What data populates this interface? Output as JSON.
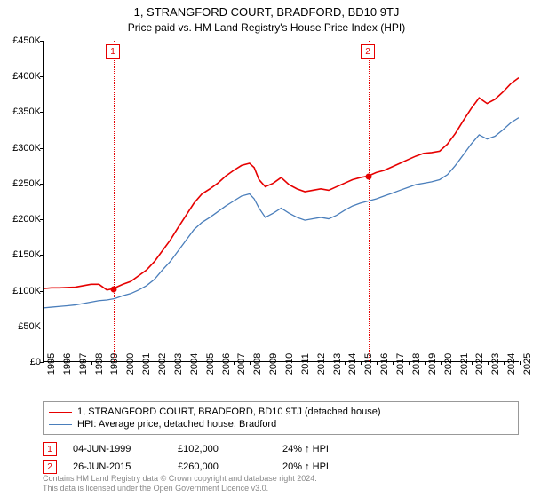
{
  "title": "1, STRANGFORD COURT, BRADFORD, BD10 9TJ",
  "subtitle": "Price paid vs. HM Land Registry's House Price Index (HPI)",
  "chart": {
    "type": "line",
    "background_color": "#ffffff",
    "axis_color": "#000000",
    "ylim": [
      0,
      450000
    ],
    "ytick_step": 50000,
    "ytick_prefix": "£",
    "ytick_suffix_thousands": "K",
    "yticks": [
      {
        "v": 0,
        "label": "£0"
      },
      {
        "v": 50000,
        "label": "£50K"
      },
      {
        "v": 100000,
        "label": "£100K"
      },
      {
        "v": 150000,
        "label": "£150K"
      },
      {
        "v": 200000,
        "label": "£200K"
      },
      {
        "v": 250000,
        "label": "£250K"
      },
      {
        "v": 300000,
        "label": "£300K"
      },
      {
        "v": 350000,
        "label": "£350K"
      },
      {
        "v": 400000,
        "label": "£400K"
      },
      {
        "v": 450000,
        "label": "£450K"
      }
    ],
    "xlim": [
      1995,
      2025
    ],
    "xticks": [
      1995,
      1996,
      1997,
      1998,
      1999,
      2000,
      2001,
      2002,
      2003,
      2004,
      2005,
      2006,
      2007,
      2008,
      2009,
      2010,
      2011,
      2012,
      2013,
      2014,
      2015,
      2016,
      2017,
      2018,
      2019,
      2020,
      2021,
      2022,
      2023,
      2024,
      2025
    ],
    "series": [
      {
        "name": "price_paid",
        "label": "1, STRANGFORD COURT, BRADFORD, BD10 9TJ (detached house)",
        "color": "#e60000",
        "line_width": 1.6,
        "points": [
          [
            1995.0,
            102000
          ],
          [
            1995.5,
            103000
          ],
          [
            1996.0,
            103000
          ],
          [
            1996.5,
            103500
          ],
          [
            1997.0,
            104000
          ],
          [
            1997.5,
            106000
          ],
          [
            1998.0,
            108000
          ],
          [
            1998.5,
            108000
          ],
          [
            1999.0,
            100000
          ],
          [
            1999.42,
            102000
          ],
          [
            1999.7,
            105000
          ],
          [
            2000.0,
            108000
          ],
          [
            2000.5,
            112000
          ],
          [
            2001.0,
            120000
          ],
          [
            2001.5,
            128000
          ],
          [
            2002.0,
            140000
          ],
          [
            2002.5,
            155000
          ],
          [
            2003.0,
            170000
          ],
          [
            2003.5,
            188000
          ],
          [
            2004.0,
            205000
          ],
          [
            2004.5,
            222000
          ],
          [
            2005.0,
            235000
          ],
          [
            2005.5,
            242000
          ],
          [
            2006.0,
            250000
          ],
          [
            2006.5,
            260000
          ],
          [
            2007.0,
            268000
          ],
          [
            2007.5,
            275000
          ],
          [
            2008.0,
            278000
          ],
          [
            2008.3,
            272000
          ],
          [
            2008.6,
            255000
          ],
          [
            2009.0,
            245000
          ],
          [
            2009.5,
            250000
          ],
          [
            2010.0,
            258000
          ],
          [
            2010.5,
            248000
          ],
          [
            2011.0,
            242000
          ],
          [
            2011.5,
            238000
          ],
          [
            2012.0,
            240000
          ],
          [
            2012.5,
            242000
          ],
          [
            2013.0,
            240000
          ],
          [
            2013.5,
            245000
          ],
          [
            2014.0,
            250000
          ],
          [
            2014.5,
            255000
          ],
          [
            2015.0,
            258000
          ],
          [
            2015.49,
            260000
          ],
          [
            2015.7,
            262000
          ],
          [
            2016.0,
            265000
          ],
          [
            2016.5,
            268000
          ],
          [
            2017.0,
            273000
          ],
          [
            2017.5,
            278000
          ],
          [
            2018.0,
            283000
          ],
          [
            2018.5,
            288000
          ],
          [
            2019.0,
            292000
          ],
          [
            2019.5,
            293000
          ],
          [
            2020.0,
            295000
          ],
          [
            2020.5,
            305000
          ],
          [
            2021.0,
            320000
          ],
          [
            2021.5,
            338000
          ],
          [
            2022.0,
            355000
          ],
          [
            2022.5,
            370000
          ],
          [
            2023.0,
            362000
          ],
          [
            2023.5,
            368000
          ],
          [
            2024.0,
            378000
          ],
          [
            2024.5,
            390000
          ],
          [
            2025.0,
            398000
          ]
        ]
      },
      {
        "name": "hpi",
        "label": "HPI: Average price, detached house, Bradford",
        "color": "#4a7ebb",
        "line_width": 1.3,
        "points": [
          [
            1995.0,
            75000
          ],
          [
            1995.5,
            76000
          ],
          [
            1996.0,
            77000
          ],
          [
            1996.5,
            78000
          ],
          [
            1997.0,
            79000
          ],
          [
            1997.5,
            81000
          ],
          [
            1998.0,
            83000
          ],
          [
            1998.5,
            85000
          ],
          [
            1999.0,
            86000
          ],
          [
            1999.5,
            88000
          ],
          [
            2000.0,
            92000
          ],
          [
            2000.5,
            95000
          ],
          [
            2001.0,
            100000
          ],
          [
            2001.5,
            106000
          ],
          [
            2002.0,
            115000
          ],
          [
            2002.5,
            128000
          ],
          [
            2003.0,
            140000
          ],
          [
            2003.5,
            155000
          ],
          [
            2004.0,
            170000
          ],
          [
            2004.5,
            185000
          ],
          [
            2005.0,
            195000
          ],
          [
            2005.5,
            202000
          ],
          [
            2006.0,
            210000
          ],
          [
            2006.5,
            218000
          ],
          [
            2007.0,
            225000
          ],
          [
            2007.5,
            232000
          ],
          [
            2008.0,
            235000
          ],
          [
            2008.3,
            228000
          ],
          [
            2008.6,
            215000
          ],
          [
            2009.0,
            202000
          ],
          [
            2009.5,
            208000
          ],
          [
            2010.0,
            215000
          ],
          [
            2010.5,
            208000
          ],
          [
            2011.0,
            202000
          ],
          [
            2011.5,
            198000
          ],
          [
            2012.0,
            200000
          ],
          [
            2012.5,
            202000
          ],
          [
            2013.0,
            200000
          ],
          [
            2013.5,
            205000
          ],
          [
            2014.0,
            212000
          ],
          [
            2014.5,
            218000
          ],
          [
            2015.0,
            222000
          ],
          [
            2015.5,
            225000
          ],
          [
            2016.0,
            228000
          ],
          [
            2016.5,
            232000
          ],
          [
            2017.0,
            236000
          ],
          [
            2017.5,
            240000
          ],
          [
            2018.0,
            244000
          ],
          [
            2018.5,
            248000
          ],
          [
            2019.0,
            250000
          ],
          [
            2019.5,
            252000
          ],
          [
            2020.0,
            255000
          ],
          [
            2020.5,
            262000
          ],
          [
            2021.0,
            275000
          ],
          [
            2021.5,
            290000
          ],
          [
            2022.0,
            305000
          ],
          [
            2022.5,
            318000
          ],
          [
            2023.0,
            312000
          ],
          [
            2023.5,
            316000
          ],
          [
            2024.0,
            325000
          ],
          [
            2024.5,
            335000
          ],
          [
            2025.0,
            342000
          ]
        ]
      }
    ],
    "markers": [
      {
        "id": "1",
        "x": 1999.42,
        "y": 102000,
        "badge_color": "#e60000",
        "vline_color": "#e60000",
        "date": "04-JUN-1999",
        "price": "£102,000",
        "delta": "24% ↑ HPI"
      },
      {
        "id": "2",
        "x": 2015.49,
        "y": 260000,
        "badge_color": "#e60000",
        "vline_color": "#e60000",
        "date": "26-JUN-2015",
        "price": "£260,000",
        "delta": "20% ↑ HPI"
      }
    ]
  },
  "attribution": {
    "line1": "Contains HM Land Registry data © Crown copyright and database right 2024.",
    "line2": "This data is licensed under the Open Government Licence v3.0."
  }
}
